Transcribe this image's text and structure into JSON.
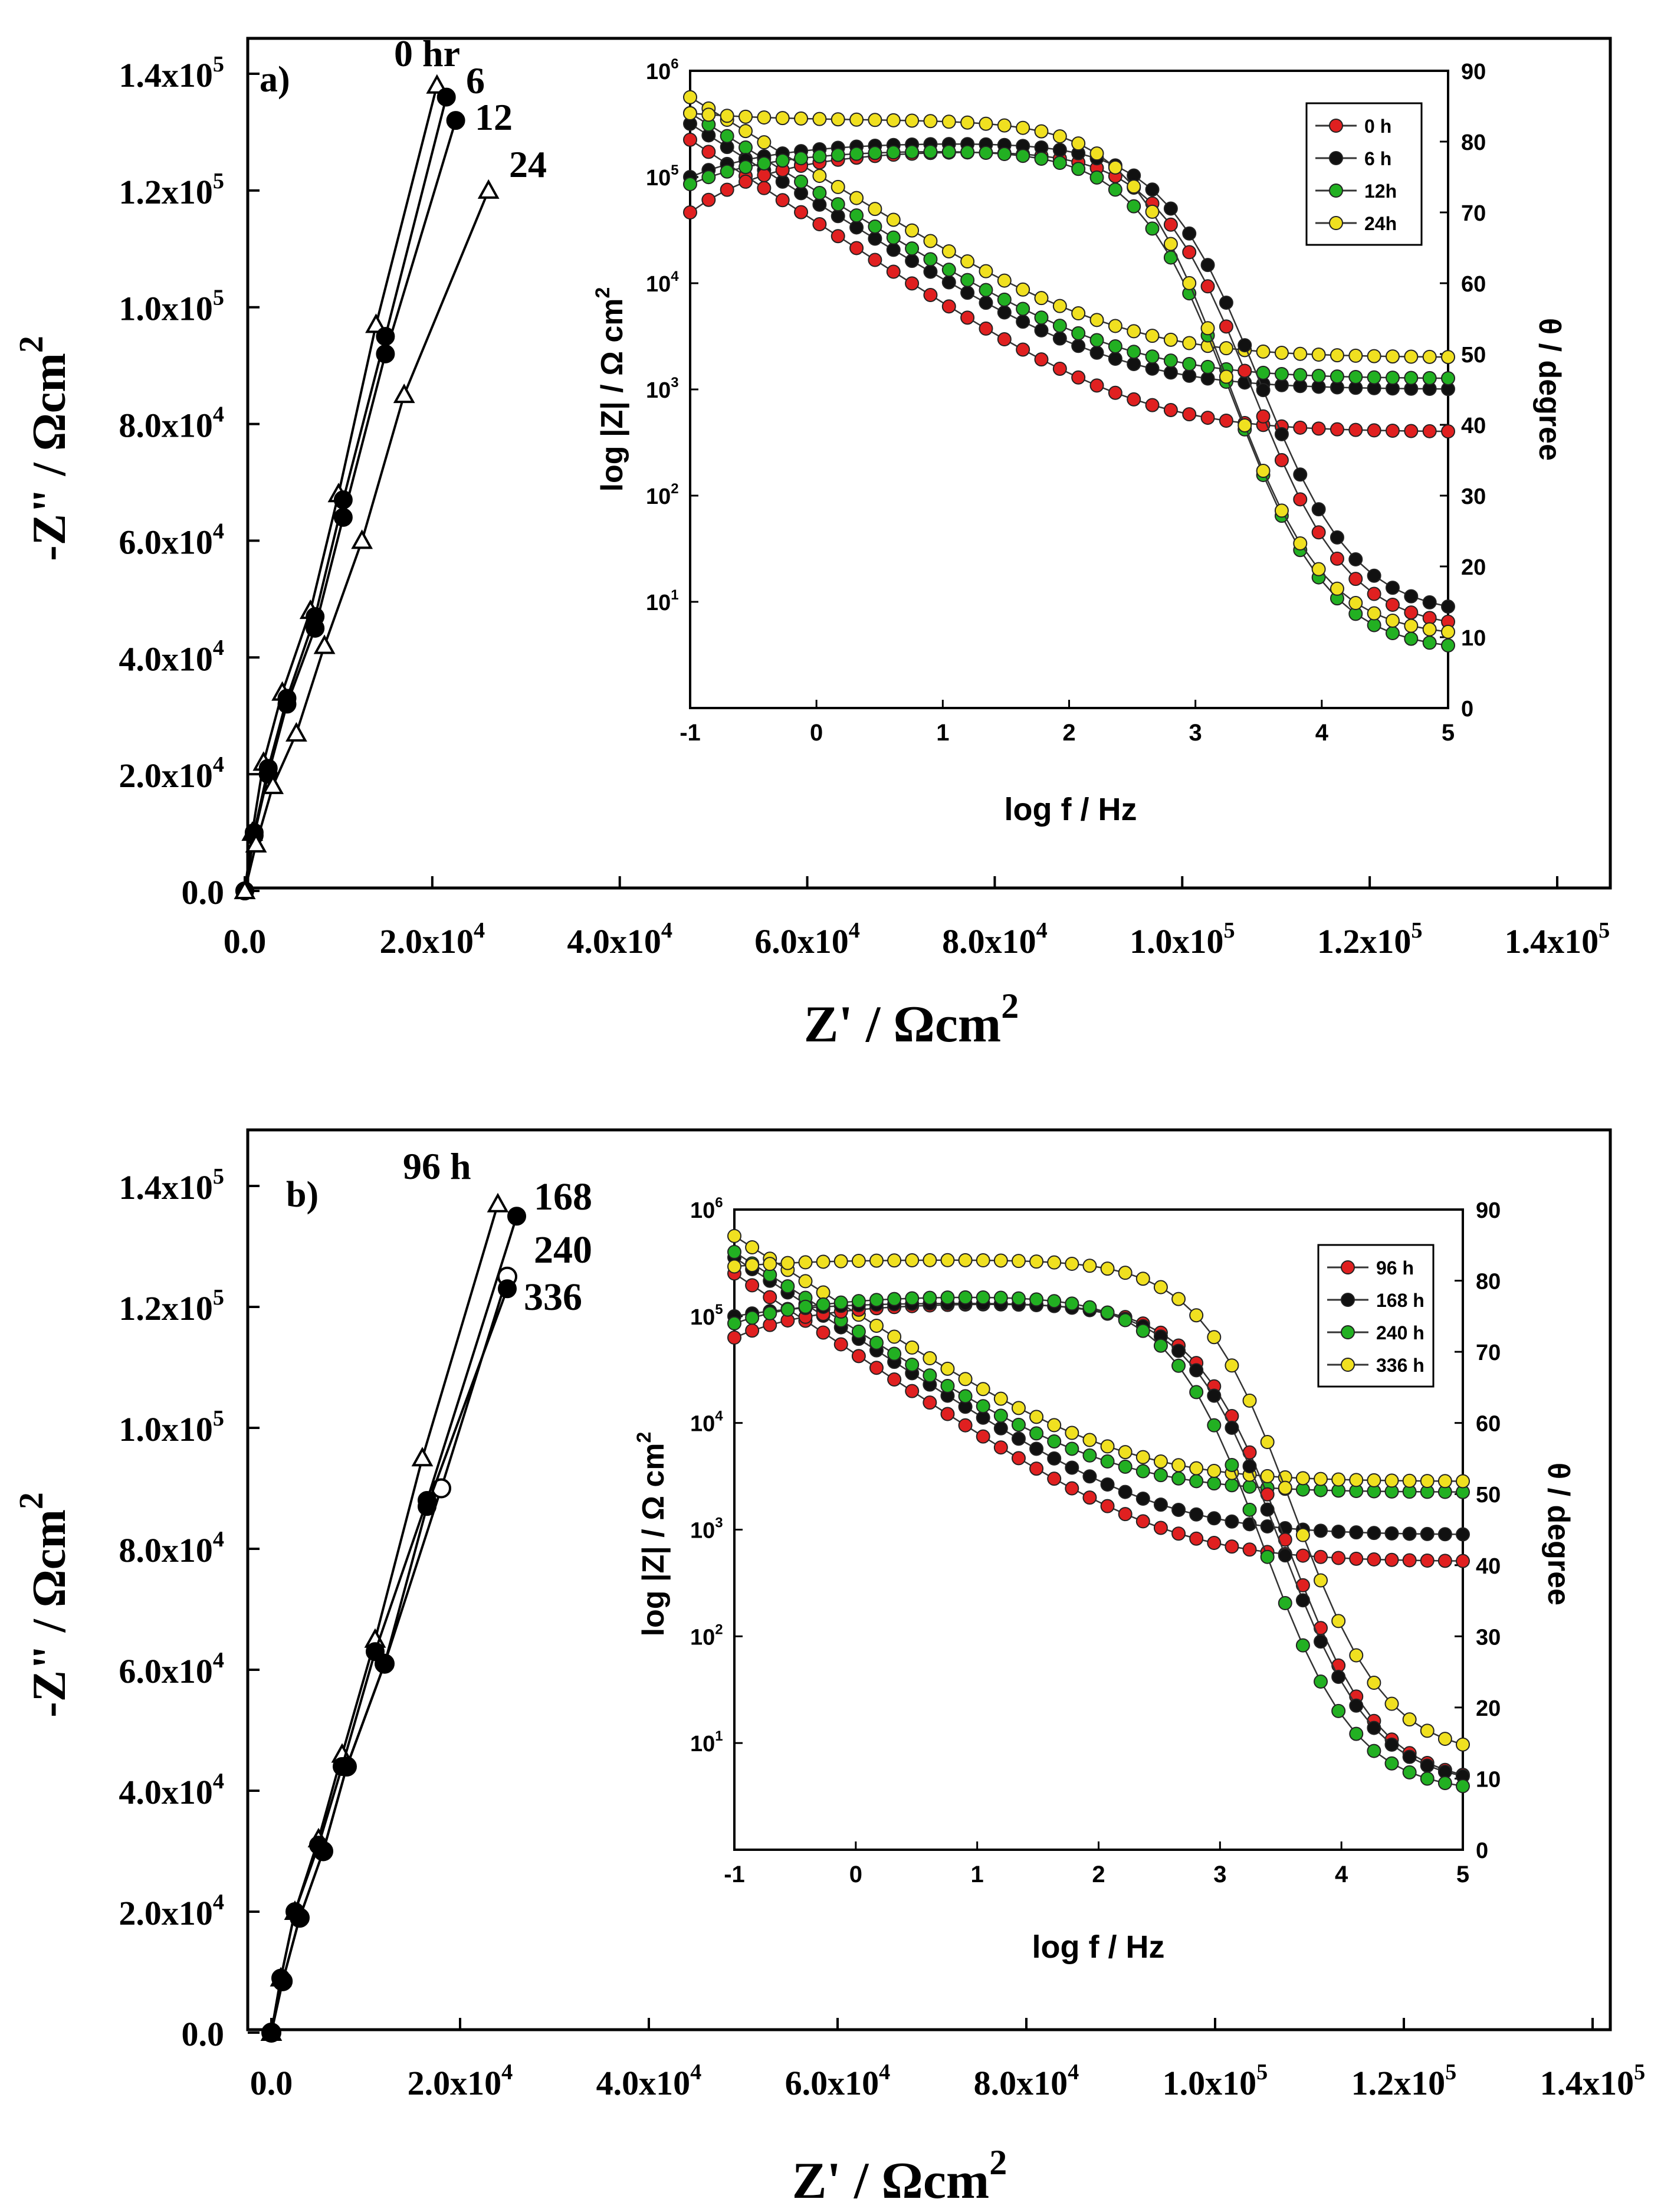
{
  "chart_data": [
    {
      "panel_label": "a)",
      "type": "scatter",
      "nyquist": {
        "xlabel": "Z' / Ωcm2",
        "ylabel": "-Z\" / Ωcm2",
        "xlim": [
          0,
          140000
        ],
        "ylim": [
          0,
          140000
        ],
        "x_tick_values": [
          0,
          20000,
          40000,
          60000,
          80000,
          100000,
          120000,
          140000
        ],
        "y_tick_values": [
          0,
          20000,
          40000,
          60000,
          80000,
          100000,
          120000,
          140000
        ],
        "x_tick_labels": [
          {
            "mant": "0.0",
            "exp": ""
          },
          {
            "mant": "2.0x10",
            "exp": "4"
          },
          {
            "mant": "4.0x10",
            "exp": "4"
          },
          {
            "mant": "6.0x10",
            "exp": "4"
          },
          {
            "mant": "8.0x10",
            "exp": "4"
          },
          {
            "mant": "1.0x10",
            "exp": "5"
          },
          {
            "mant": "1.2x10",
            "exp": "5"
          },
          {
            "mant": "1.4x10",
            "exp": "5"
          }
        ],
        "y_tick_labels": [
          {
            "mant": "0.0",
            "exp": ""
          },
          {
            "mant": "2.0x10",
            "exp": "4"
          },
          {
            "mant": "4.0x10",
            "exp": "4"
          },
          {
            "mant": "6.0x10",
            "exp": "4"
          },
          {
            "mant": "8.0x10",
            "exp": "4"
          },
          {
            "mant": "1.0x10",
            "exp": "5"
          },
          {
            "mant": "1.2x10",
            "exp": "5"
          },
          {
            "mant": "1.4x10",
            "exp": "5"
          }
        ],
        "series": [
          {
            "name": "0 hr",
            "marker": "open-triangle",
            "x": [
              0,
              800,
              2000,
              4000,
              7000,
              10000,
              14000,
              20500
            ],
            "y": [
              0,
              10000,
              22000,
              34000,
              48000,
              68000,
              97000,
              138000
            ]
          },
          {
            "name": "6",
            "marker": "filled-circle",
            "x": [
              0,
              1000,
              2500,
              4500,
              7500,
              10500,
              15000,
              21500
            ],
            "y": [
              0,
              10000,
              21000,
              33000,
              47000,
              67000,
              95000,
              136000
            ]
          },
          {
            "name": "12",
            "marker": "filled-circle",
            "x": [
              0,
              1000,
              2500,
              4500,
              7500,
              10500,
              15000,
              22500
            ],
            "y": [
              0,
              9500,
              20000,
              32000,
              45000,
              64000,
              92000,
              132000
            ]
          },
          {
            "name": "24",
            "marker": "open-triangle",
            "x": [
              0,
              1200,
              3000,
              5500,
              8500,
              12500,
              17000,
              26000
            ],
            "y": [
              0,
              8000,
              18000,
              27000,
              42000,
              60000,
              85000,
              120000
            ]
          }
        ],
        "annotations": [
          "0 hr",
          "6",
          "12",
          "24"
        ]
      },
      "bode": {
        "type": "line",
        "xlabel": "log f / Hz",
        "ylabel_left": "log |Z| / Ω cm2",
        "ylabel_right": "θ / degree",
        "xlim": [
          -1,
          5
        ],
        "ylim_left_log": [
          0,
          6
        ],
        "ylim_right": [
          0,
          90
        ],
        "x_ticks": [
          -1,
          0,
          1,
          2,
          3,
          4,
          5
        ],
        "y_left_ticks": [
          1,
          2,
          3,
          4,
          5,
          6
        ],
        "y_right_ticks": [
          0,
          10,
          20,
          30,
          40,
          50,
          60,
          70,
          80,
          90
        ],
        "legend": [
          "0 h",
          "6 h",
          "12h",
          "24h"
        ],
        "legend_position": "top-right",
        "impedance_series": [
          {
            "name": "0 h",
            "color": "#e02020",
            "high_freq_logZ": 2.6,
            "slope": 0.78,
            "low_freq_logZ": 5.55
          },
          {
            "name": "6 h",
            "color": "#111111",
            "high_freq_logZ": 3.0,
            "slope": 0.75,
            "low_freq_logZ": 5.7
          },
          {
            "name": "12h",
            "color": "#22b022",
            "high_freq_logZ": 3.1,
            "slope": 0.74,
            "low_freq_logZ": 5.8
          },
          {
            "name": "24h",
            "color": "#f0e020",
            "high_freq_logZ": 3.3,
            "slope": 0.73,
            "low_freq_logZ": 5.95
          }
        ],
        "phase_series": [
          {
            "name": "0 h",
            "color": "#e02020",
            "low_freq_phase": 70,
            "plateau": 79,
            "f_half": 3.45,
            "high_freq_phase": 11
          },
          {
            "name": "6 h",
            "color": "#111111",
            "low_freq_phase": 75,
            "plateau": 80,
            "f_half": 3.5,
            "high_freq_phase": 13
          },
          {
            "name": "12h",
            "color": "#22b022",
            "low_freq_phase": 74,
            "plateau": 79,
            "f_half": 3.3,
            "high_freq_phase": 8
          },
          {
            "name": "24h",
            "color": "#f0e020",
            "low_freq_phase": 84,
            "plateau": 83,
            "f_half": 3.25,
            "high_freq_phase": 10
          }
        ]
      }
    },
    {
      "panel_label": "b)",
      "type": "scatter",
      "nyquist": {
        "xlabel": "Z' / Ωcm2",
        "ylabel": "-Z\" / Ωcm2",
        "xlim": [
          0,
          140000
        ],
        "ylim": [
          0,
          140000
        ],
        "x_tick_values": [
          0,
          20000,
          40000,
          60000,
          80000,
          100000,
          120000,
          140000
        ],
        "y_tick_values": [
          0,
          20000,
          40000,
          60000,
          80000,
          100000,
          120000,
          140000
        ],
        "x_tick_labels": [
          {
            "mant": "0.0",
            "exp": ""
          },
          {
            "mant": "2.0x10",
            "exp": "4"
          },
          {
            "mant": "4.0x10",
            "exp": "4"
          },
          {
            "mant": "6.0x10",
            "exp": "4"
          },
          {
            "mant": "8.0x10",
            "exp": "4"
          },
          {
            "mant": "1.0x10",
            "exp": "5"
          },
          {
            "mant": "1.2x10",
            "exp": "5"
          },
          {
            "mant": "1.4x10",
            "exp": "5"
          }
        ],
        "y_tick_labels": [
          {
            "mant": "0.0",
            "exp": ""
          },
          {
            "mant": "2.0x10",
            "exp": "4"
          },
          {
            "mant": "4.0x10",
            "exp": "4"
          },
          {
            "mant": "6.0x10",
            "exp": "4"
          },
          {
            "mant": "8.0x10",
            "exp": "4"
          },
          {
            "mant": "1.0x10",
            "exp": "5"
          },
          {
            "mant": "1.2x10",
            "exp": "5"
          },
          {
            "mant": "1.4x10",
            "exp": "5"
          }
        ],
        "series": [
          {
            "name": "96 h",
            "marker": "open-triangle",
            "x": [
              0,
              1000,
              2500,
              5000,
              7500,
              11000,
              16000,
              24000
            ],
            "y": [
              0,
              9000,
              20000,
              32000,
              46000,
              65000,
              95000,
              137000
            ]
          },
          {
            "name": "168",
            "marker": "filled-circle",
            "x": [
              0,
              1000,
              2500,
              5000,
              7500,
              11000,
              16500,
              26000
            ],
            "y": [
              0,
              9000,
              20000,
              31000,
              44000,
              63000,
              88000,
              135000
            ]
          },
          {
            "name": "240",
            "marker": "open-circle",
            "x": [
              0,
              1200,
              3000,
              5500,
              8000,
              12000,
              18000,
              25000
            ],
            "y": [
              0,
              8500,
              19000,
              30000,
              44000,
              61000,
              90000,
              125000
            ]
          },
          {
            "name": "336",
            "marker": "filled-circle",
            "x": [
              0,
              1200,
              3000,
              5500,
              8000,
              12000,
              16500,
              25000
            ],
            "y": [
              0,
              8500,
              19000,
              30000,
              44000,
              61000,
              87000,
              123000
            ]
          }
        ],
        "annotations": [
          "96 h",
          "168",
          "240",
          "336"
        ]
      },
      "bode": {
        "type": "line",
        "xlabel": "log f / Hz",
        "ylabel_left": "log |Z| / Ω cm2",
        "ylabel_right": "θ / degree",
        "xlim": [
          -1,
          5
        ],
        "ylim_left_log": [
          0,
          6
        ],
        "ylim_right": [
          0,
          90
        ],
        "x_ticks": [
          -1,
          0,
          1,
          2,
          3,
          4,
          5
        ],
        "y_left_ticks": [
          1,
          2,
          3,
          4,
          5,
          6
        ],
        "y_right_ticks": [
          0,
          10,
          20,
          30,
          40,
          50,
          60,
          70,
          80,
          90
        ],
        "legend": [
          "96 h",
          "168 h",
          "240 h",
          "336 h"
        ],
        "legend_position": "top-right",
        "impedance_series": [
          {
            "name": "96 h",
            "color": "#e02020",
            "high_freq_logZ": 2.7,
            "slope": 0.76,
            "low_freq_logZ": 5.6
          },
          {
            "name": "168 h",
            "color": "#111111",
            "high_freq_logZ": 2.95,
            "slope": 0.75,
            "low_freq_logZ": 5.75
          },
          {
            "name": "240 h",
            "color": "#22b022",
            "high_freq_logZ": 3.35,
            "slope": 0.74,
            "low_freq_logZ": 5.8
          },
          {
            "name": "336 h",
            "color": "#f0e020",
            "high_freq_logZ": 3.45,
            "slope": 0.73,
            "low_freq_logZ": 5.95
          }
        ],
        "phase_series": [
          {
            "name": "96 h",
            "color": "#e02020",
            "low_freq_phase": 72,
            "plateau": 77,
            "f_half": 3.55,
            "high_freq_phase": 9
          },
          {
            "name": "168 h",
            "color": "#111111",
            "low_freq_phase": 75,
            "plateau": 77,
            "f_half": 3.5,
            "high_freq_phase": 9
          },
          {
            "name": "240 h",
            "color": "#22b022",
            "low_freq_phase": 74,
            "plateau": 78,
            "f_half": 3.35,
            "high_freq_phase": 8
          },
          {
            "name": "336 h",
            "color": "#f0e020",
            "low_freq_phase": 82,
            "plateau": 83,
            "f_half": 3.6,
            "high_freq_phase": 13
          }
        ]
      }
    }
  ]
}
